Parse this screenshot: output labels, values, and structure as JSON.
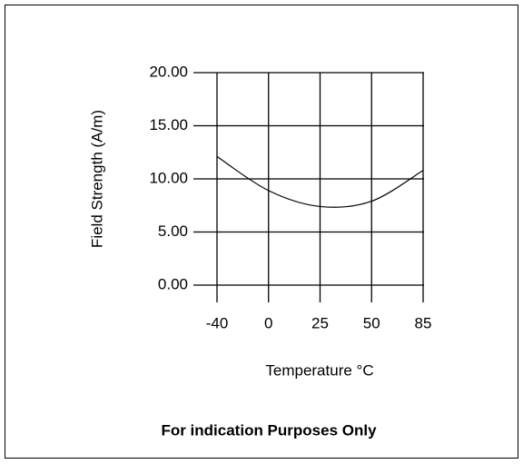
{
  "chart_data": {
    "type": "line",
    "x_label": "Temperature °C",
    "y_label": "Field Strength (A/m)",
    "annotation": "For indication Purposes Only",
    "categories": [
      "-40",
      "0",
      "25",
      "50",
      "85"
    ],
    "series": [
      {
        "name": "Field Strength",
        "color": "#000000",
        "values": [
          12.1,
          8.9,
          7.4,
          7.9,
          10.8
        ]
      }
    ],
    "ylim": [
      0,
      20
    ],
    "yticks": [
      {
        "value": 0,
        "label": "0.00"
      },
      {
        "value": 5,
        "label": "5.00"
      },
      {
        "value": 10,
        "label": "10.00"
      },
      {
        "value": 15,
        "label": "15.00"
      },
      {
        "value": 20,
        "label": "20.00"
      }
    ],
    "grid": true
  }
}
